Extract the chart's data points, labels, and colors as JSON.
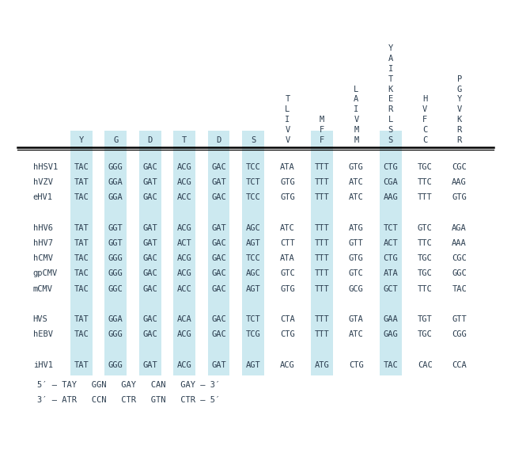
{
  "bg_color": "#ffffff",
  "highlight_color": "#cce9f0",
  "text_color": "#2c3e50",
  "col_headers": [
    "Y",
    "G",
    "D",
    "T",
    "D",
    "S",
    "V",
    "F",
    "M",
    "S",
    "C",
    "R"
  ],
  "vert_headers": {
    "6": [
      "T",
      "L",
      "I",
      "V"
    ],
    "7": [
      "M",
      "F"
    ],
    "8": [
      "L",
      "A",
      "I",
      "V",
      "M"
    ],
    "9": [
      "Y",
      "A",
      "I",
      "T",
      "K",
      "E",
      "R",
      "L",
      "S"
    ],
    "10": [
      "H",
      "V",
      "F",
      "C"
    ],
    "11": [
      "P",
      "G",
      "Y",
      "V",
      "K",
      "R"
    ]
  },
  "highlighted_codon_cols": [
    0,
    1,
    2,
    3,
    4,
    5,
    7,
    9
  ],
  "rows": [
    {
      "label": "hHSV1",
      "codons": [
        "TAC",
        "GGG",
        "GAC",
        "ACG",
        "GAC",
        "TCC",
        "ATA",
        "TTT",
        "GTG",
        "CTG",
        "TGC",
        "CGC"
      ]
    },
    {
      "label": "hVZV",
      "codons": [
        "TAT",
        "GGA",
        "GAT",
        "ACG",
        "GAT",
        "TCT",
        "GTG",
        "TTT",
        "ATC",
        "CGA",
        "TTC",
        "AAG"
      ]
    },
    {
      "label": "eHV1",
      "codons": [
        "TAC",
        "GGA",
        "GAC",
        "ACC",
        "GAC",
        "TCC",
        "GTG",
        "TTT",
        "ATC",
        "AAG",
        "TTT",
        "GTG"
      ]
    },
    {
      "label": "",
      "codons": [
        "",
        "",
        "",
        "",
        "",
        "",
        "",
        "",
        "",
        "",
        "",
        ""
      ]
    },
    {
      "label": "hHV6",
      "codons": [
        "TAT",
        "GGT",
        "GAT",
        "ACG",
        "GAT",
        "AGC",
        "ATC",
        "TTT",
        "ATG",
        "TCT",
        "GTC",
        "AGA"
      ]
    },
    {
      "label": "hHV7",
      "codons": [
        "TAT",
        "GGT",
        "GAT",
        "ACT",
        "GAC",
        "AGT",
        "CTT",
        "TTT",
        "GTT",
        "ACT",
        "TTC",
        "AAA"
      ]
    },
    {
      "label": "hCMV",
      "codons": [
        "TAC",
        "GGG",
        "GAC",
        "ACG",
        "GAC",
        "TCC",
        "ATA",
        "TTT",
        "GTG",
        "CTG",
        "TGC",
        "CGC"
      ]
    },
    {
      "label": "gpCMV",
      "codons": [
        "TAC",
        "GGG",
        "GAC",
        "ACG",
        "GAC",
        "AGC",
        "GTC",
        "TTT",
        "GTC",
        "ATA",
        "TGC",
        "GGC"
      ]
    },
    {
      "label": "mCMV",
      "codons": [
        "TAC",
        "GGC",
        "GAC",
        "ACC",
        "GAC",
        "AGT",
        "GTG",
        "TTT",
        "GCG",
        "GCT",
        "TTC",
        "TAC"
      ]
    },
    {
      "label": "",
      "codons": [
        "",
        "",
        "",
        "",
        "",
        "",
        "",
        "",
        "",
        "",
        "",
        ""
      ]
    },
    {
      "label": "HVS",
      "codons": [
        "TAT",
        "GGA",
        "GAC",
        "ACA",
        "GAC",
        "TCT",
        "CTA",
        "TTT",
        "GTA",
        "GAA",
        "TGT",
        "GTT"
      ]
    },
    {
      "label": "hEBV",
      "codons": [
        "TAC",
        "GGG",
        "GAC",
        "ACG",
        "GAC",
        "TCG",
        "CTG",
        "TTT",
        "ATC",
        "GAG",
        "TGC",
        "CGG"
      ]
    },
    {
      "label": "",
      "codons": [
        "",
        "",
        "",
        "",
        "",
        "",
        "",
        "",
        "",
        "",
        "",
        ""
      ]
    },
    {
      "label": "iHV1",
      "codons": [
        "TAT",
        "GGG",
        "GAT",
        "ACG",
        "GAT",
        "AGT",
        "ACG",
        "ATG",
        "CTG",
        "TAC",
        "CAC",
        "CCA"
      ]
    }
  ],
  "primer_line1": "5′ – TAY   GGN   GAY   CAN   GAY – 3′",
  "primer_line2": "3′ – ATR   CCN   CTR   GTN   CTR – 5′"
}
